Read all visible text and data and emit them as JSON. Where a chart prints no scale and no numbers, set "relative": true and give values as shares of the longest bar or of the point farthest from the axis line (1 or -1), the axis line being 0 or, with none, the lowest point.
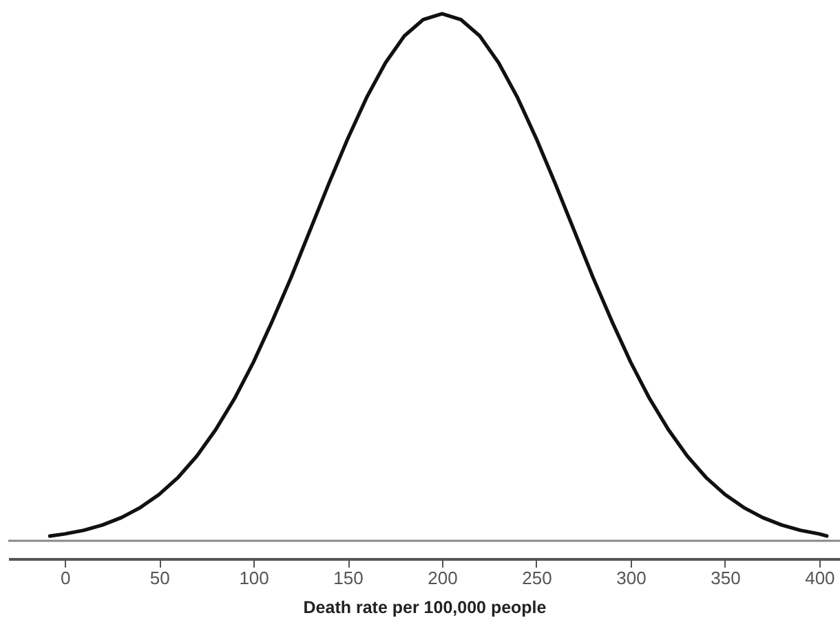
{
  "chart_data": {
    "type": "line",
    "relative": true,
    "xlabel": "Death rate per 100,000 people",
    "xlim": [
      -30,
      411
    ],
    "xticks": [
      0,
      50,
      100,
      150,
      200,
      250,
      300,
      350,
      400
    ],
    "grid": false,
    "marker": "none",
    "line_style": "solid",
    "x": [
      -8,
      0,
      10,
      20,
      30,
      40,
      50,
      60,
      70,
      80,
      90,
      100,
      110,
      120,
      130,
      140,
      150,
      160,
      170,
      180,
      190,
      200,
      210,
      220,
      230,
      240,
      250,
      260,
      270,
      280,
      290,
      300,
      310,
      320,
      330,
      340,
      350,
      360,
      370,
      380,
      390,
      400,
      404
    ],
    "series": [
      {
        "color": "#111111",
        "values": [
          0.009,
          0.013,
          0.02,
          0.03,
          0.044,
          0.063,
          0.088,
          0.12,
          0.161,
          0.211,
          0.27,
          0.339,
          0.417,
          0.5,
          0.589,
          0.678,
          0.763,
          0.841,
          0.907,
          0.958,
          0.989,
          1,
          0.989,
          0.958,
          0.907,
          0.841,
          0.763,
          0.678,
          0.589,
          0.5,
          0.417,
          0.339,
          0.27,
          0.211,
          0.161,
          0.12,
          0.088,
          0.063,
          0.044,
          0.03,
          0.02,
          0.013,
          0.009
        ]
      }
    ]
  }
}
